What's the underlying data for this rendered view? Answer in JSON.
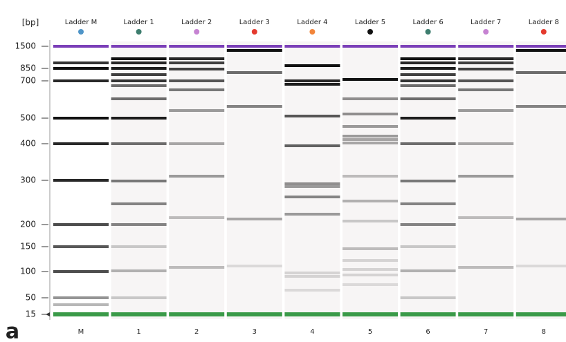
{
  "axis": {
    "unit": "[bp]",
    "ticks": [
      "1500",
      "850",
      "700",
      "500",
      "400",
      "300",
      "200",
      "150",
      "100",
      "50",
      "15"
    ]
  },
  "lanes": [
    {
      "name": "Ladder M",
      "footer": "M",
      "dot_color": "#4f95c8"
    },
    {
      "name": "Ladder 1",
      "footer": "1",
      "dot_color": "#3d7d6e"
    },
    {
      "name": "Ladder 2",
      "footer": "2",
      "dot_color": "#c683d2"
    },
    {
      "name": "Ladder 3",
      "footer": "3",
      "dot_color": "#e43a2e"
    },
    {
      "name": "Ladder 4",
      "footer": "4",
      "dot_color": "#f2853a"
    },
    {
      "name": "Ladder 5",
      "footer": "5",
      "dot_color": "#111111"
    },
    {
      "name": "Ladder 6",
      "footer": "6",
      "dot_color": "#3d7d6e"
    },
    {
      "name": "Ladder 7",
      "footer": "7",
      "dot_color": "#c683d2"
    },
    {
      "name": "Ladder 8",
      "footer": "8",
      "dot_color": "#e43a2e"
    }
  ],
  "panel_label": "a"
}
